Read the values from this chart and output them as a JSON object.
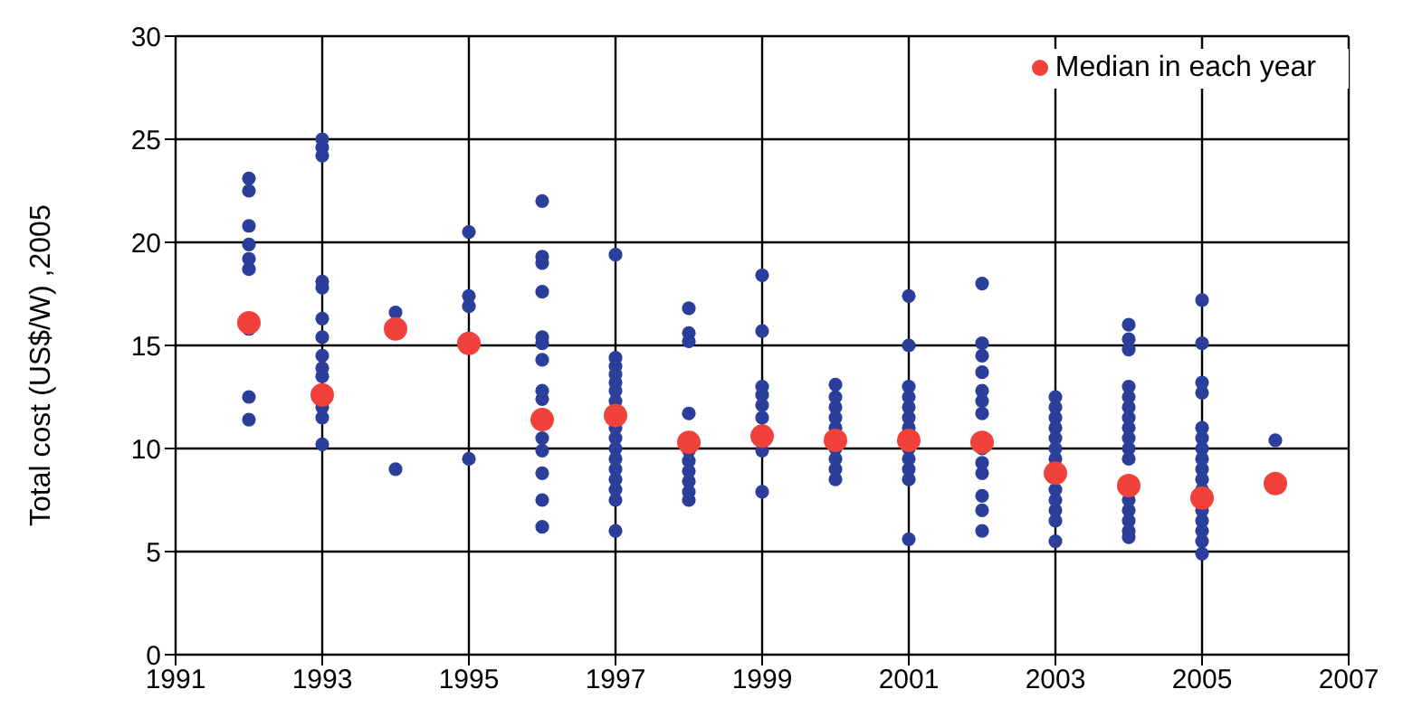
{
  "chart_data": {
    "type": "scatter",
    "ylabel": "Total cost (US$/W) ,2005",
    "xlim": [
      1991,
      2007
    ],
    "xticks": [
      1991,
      1993,
      1995,
      1997,
      1999,
      2001,
      2003,
      2005,
      2007
    ],
    "ylim": [
      0,
      30
    ],
    "yticks": [
      0,
      5,
      10,
      15,
      20,
      25,
      30
    ],
    "grid": true,
    "legend": "top right",
    "marker": "circle",
    "series": [
      {
        "color": "#2b3f9a",
        "x": [
          1992,
          1992,
          1992,
          1992,
          1992,
          1992,
          1992,
          1992,
          1992,
          1993,
          1993,
          1993,
          1993,
          1993,
          1993,
          1993,
          1993,
          1993,
          1993,
          1993,
          1993,
          1993,
          1994,
          1994,
          1995,
          1995,
          1995,
          1995,
          1996,
          1996,
          1996,
          1996,
          1996,
          1996,
          1996,
          1996,
          1996,
          1996,
          1996,
          1996,
          1996,
          1996,
          1997,
          1997,
          1997,
          1997,
          1997,
          1997,
          1997,
          1997,
          1997,
          1997,
          1997,
          1997,
          1997,
          1997,
          1997,
          1997,
          1998,
          1998,
          1998,
          1998,
          1998,
          1998,
          1998,
          1998,
          1998,
          1998,
          1999,
          1999,
          1999,
          1999,
          1999,
          1999,
          1999,
          1999,
          2000,
          2000,
          2000,
          2000,
          2000,
          2000,
          2000,
          2000,
          2000,
          2001,
          2001,
          2001,
          2001,
          2001,
          2001,
          2001,
          2001,
          2001,
          2001,
          2001,
          2001,
          2002,
          2002,
          2002,
          2002,
          2002,
          2002,
          2002,
          2002,
          2002,
          2002,
          2002,
          2002,
          2002,
          2003,
          2003,
          2003,
          2003,
          2003,
          2003,
          2003,
          2003,
          2003,
          2003,
          2003,
          2003,
          2004,
          2004,
          2004,
          2004,
          2004,
          2004,
          2004,
          2004,
          2004,
          2004,
          2004,
          2004,
          2004,
          2004,
          2004,
          2004,
          2005,
          2005,
          2005,
          2005,
          2005,
          2005,
          2005,
          2005,
          2005,
          2005,
          2005,
          2005,
          2005,
          2005,
          2005,
          2005,
          2006
        ],
        "values": [
          23.1,
          22.5,
          20.8,
          19.9,
          19.2,
          18.7,
          15.8,
          12.5,
          11.4,
          25,
          24.6,
          24.2,
          18.1,
          17.8,
          16.3,
          15.4,
          14.5,
          13.9,
          13.5,
          12.0,
          11.5,
          10.2,
          16.6,
          9.0,
          20.5,
          17.4,
          16.9,
          9.5,
          22,
          19.3,
          19.0,
          17.6,
          15.4,
          15.1,
          14.3,
          12.8,
          12.4,
          10.5,
          9.9,
          8.8,
          7.5,
          6.2,
          19.4,
          14.4,
          14.0,
          13.6,
          13.2,
          12.8,
          12.3,
          11.0,
          10.5,
          10.0,
          9.5,
          9.0,
          8.5,
          8.0,
          7.5,
          6.0,
          16.8,
          15.6,
          15.2,
          11.7,
          9.9,
          9.4,
          8.9,
          8.4,
          7.9,
          7.5,
          18.4,
          15.7,
          13.0,
          12.6,
          12.1,
          11.5,
          9.9,
          7.9,
          13.1,
          12.5,
          12.0,
          11.5,
          11.0,
          10.0,
          9.5,
          9.0,
          8.5,
          17.4,
          15.0,
          13.0,
          12.5,
          12.0,
          11.5,
          11.0,
          10.0,
          9.5,
          9.0,
          8.5,
          5.6,
          18.0,
          15.1,
          14.5,
          13.7,
          12.8,
          12.3,
          11.7,
          10.0,
          9.3,
          8.8,
          7.7,
          7.0,
          6.0,
          12.5,
          12.0,
          11.5,
          11.0,
          10.5,
          10.0,
          9.5,
          8.0,
          7.5,
          7.0,
          6.5,
          5.5,
          16.0,
          15.3,
          14.8,
          13.0,
          12.5,
          12.0,
          11.5,
          11.0,
          10.5,
          10.0,
          9.5,
          7.5,
          7.0,
          6.5,
          6.0,
          5.7,
          17.2,
          15.1,
          13.2,
          12.7,
          11.0,
          10.5,
          10.0,
          9.5,
          9.0,
          8.5,
          8.0,
          7.0,
          6.5,
          6.0,
          5.5,
          4.9,
          10.4
        ]
      },
      {
        "name": "Median in each year",
        "color": "#f0413b",
        "x": [
          1992,
          1993,
          1994,
          1995,
          1996,
          1997,
          1998,
          1999,
          2000,
          2001,
          2002,
          2003,
          2004,
          2005,
          2006
        ],
        "values": [
          16.1,
          12.6,
          15.8,
          15.1,
          11.4,
          11.6,
          10.3,
          10.6,
          10.4,
          10.4,
          10.3,
          8.8,
          8.2,
          7.6,
          8.3
        ]
      }
    ]
  }
}
